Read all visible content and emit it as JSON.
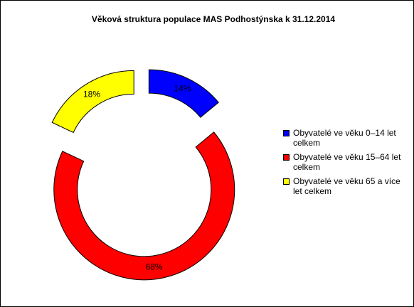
{
  "chart_data": {
    "type": "donut",
    "title": "Věková struktura populace MAS Podhostýnska k 31.12.2014",
    "categories": [
      "Obyvatelé ve věku 0–14 let celkem",
      "Obyvatelé ve věku 15–64 let celkem",
      "Obyvatelé ve věku 65 a více let celkem"
    ],
    "values": [
      14,
      68,
      18
    ],
    "value_labels": [
      "14%",
      "68%",
      "18%"
    ],
    "colors": [
      "#0000ff",
      "#ff0000",
      "#ffff00"
    ],
    "legend": "right"
  }
}
